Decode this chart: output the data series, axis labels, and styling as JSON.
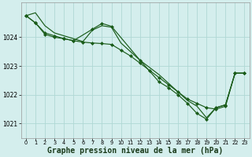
{
  "bg_color": "#d4eeed",
  "grid_color": "#b0d8d5",
  "line_color": "#1a5c1a",
  "marker_color": "#1a5c1a",
  "xlabel": "Graphe pression niveau de la mer (hPa)",
  "xlabel_fontsize": 7,
  "ylabel_ticks": [
    1021,
    1022,
    1023,
    1024
  ],
  "xlim": [
    -0.5,
    23.5
  ],
  "ylim": [
    1020.5,
    1025.2
  ],
  "xticks": [
    0,
    1,
    2,
    3,
    4,
    5,
    6,
    7,
    8,
    9,
    10,
    11,
    12,
    13,
    14,
    15,
    16,
    17,
    18,
    19,
    20,
    21,
    22,
    23
  ],
  "series1_x": [
    0,
    1,
    2,
    3,
    4,
    5,
    6,
    7,
    8,
    9,
    10,
    11,
    12,
    13,
    14,
    15,
    16,
    17,
    18,
    19,
    20,
    21,
    22,
    23
  ],
  "series1_y": [
    1024.75,
    1024.85,
    1024.4,
    1024.15,
    1024.05,
    1023.95,
    1023.85,
    1024.25,
    1024.4,
    1024.35,
    1023.8,
    1023.5,
    1023.2,
    1022.95,
    1022.7,
    1022.4,
    1022.1,
    1021.8,
    1021.6,
    1021.2,
    1021.55,
    1021.65,
    1022.75,
    1022.75
  ],
  "series2_x": [
    0,
    1,
    2,
    3,
    4,
    5,
    6,
    7,
    8,
    9,
    10,
    11,
    12,
    13,
    14,
    15,
    16,
    17,
    18,
    19,
    20,
    21,
    22,
    23
  ],
  "series2_y": [
    1024.75,
    1024.5,
    1024.15,
    1024.05,
    1023.95,
    1023.88,
    1023.83,
    1023.8,
    1023.78,
    1023.75,
    1023.55,
    1023.35,
    1023.1,
    1022.85,
    1022.6,
    1022.35,
    1022.1,
    1021.85,
    1021.7,
    1021.55,
    1021.5,
    1021.6,
    1022.75,
    1022.75
  ],
  "series3_x": [
    0,
    1,
    2,
    3,
    4,
    5,
    7,
    8,
    9,
    12,
    14,
    15,
    16,
    17,
    18,
    19,
    20,
    21,
    22,
    23
  ],
  "series3_y": [
    1024.75,
    1024.5,
    1024.1,
    1024.0,
    1023.95,
    1023.88,
    1024.28,
    1024.48,
    1024.38,
    1023.2,
    1022.45,
    1022.25,
    1022.0,
    1021.7,
    1021.35,
    1021.15,
    1021.55,
    1021.65,
    1022.75,
    1022.75
  ]
}
